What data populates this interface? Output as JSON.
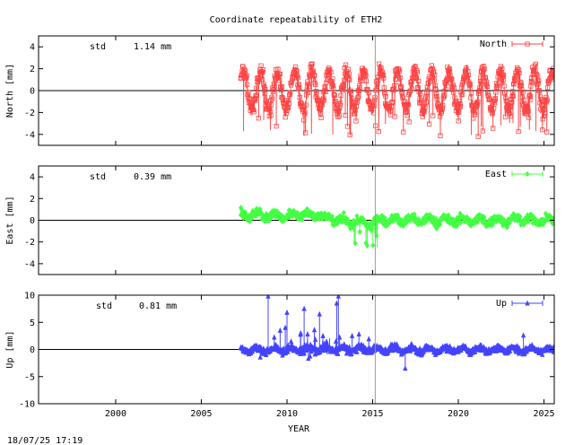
{
  "title": "Coordinate repeatability of ETH2",
  "xlabel": "YEAR",
  "footer": "18/07/25 17:19",
  "chart_data": {
    "type": "scatter",
    "title": "Coordinate repeatability of ETH2",
    "xlabel": "YEAR",
    "xlim": [
      1995.5,
      2025.6
    ],
    "xticks": [
      "2000",
      "2005",
      "2010",
      "2015",
      "2020",
      "2025"
    ],
    "vline_year": 2015.15,
    "panels": [
      {
        "ylabel": "North [mm]",
        "legend": "North",
        "std_label": "std",
        "std_value": "1.14 mm",
        "color": "#ff4444",
        "marker": "square",
        "ylim": [
          -5,
          5
        ],
        "yticks": [
          "4",
          "2",
          "0",
          "-2",
          "-4"
        ],
        "data_start": 2007.3,
        "data_end": 2025.6,
        "annual_amplitude_mm": 1.8,
        "scatter_mm": 0.6,
        "outlier_range_mm": [
          -4.2,
          2.8
        ]
      },
      {
        "ylabel": "East [mm]",
        "legend": "East",
        "std_label": "std",
        "std_value": "0.39 mm",
        "color": "#44ff44",
        "marker": "diamond",
        "ylim": [
          -5,
          5
        ],
        "yticks": [
          "4",
          "2",
          "0",
          "-2",
          "-4"
        ],
        "data_start": 2007.3,
        "data_end": 2025.6,
        "annual_amplitude_mm": 0.5,
        "scatter_mm": 0.35,
        "outlier_range_mm": [
          -2.5,
          2.6
        ]
      },
      {
        "ylabel": "Up [mm]",
        "legend": "Up",
        "std_label": "std",
        "std_value": "0.81 mm",
        "color": "#4444ff",
        "marker": "triangle",
        "ylim": [
          -10,
          10
        ],
        "yticks": [
          "10",
          "5",
          "0",
          "-5",
          "-10"
        ],
        "data_start": 2007.3,
        "data_end": 2025.6,
        "annual_amplitude_mm": 0.4,
        "scatter_mm": 0.5,
        "spikes": [
          {
            "x": 2008.9,
            "y": 9.8
          },
          {
            "x": 2009.6,
            "y": 3.5
          },
          {
            "x": 2009.9,
            "y": 4.0
          },
          {
            "x": 2010.0,
            "y": 6.8
          },
          {
            "x": 2010.8,
            "y": 3.0
          },
          {
            "x": 2011.0,
            "y": 7.5
          },
          {
            "x": 2011.6,
            "y": 3.6
          },
          {
            "x": 2011.9,
            "y": 6.5
          },
          {
            "x": 2012.1,
            "y": 2.5
          },
          {
            "x": 2012.9,
            "y": 8.5
          },
          {
            "x": 2013.0,
            "y": 9.8
          },
          {
            "x": 2013.8,
            "y": 2.5
          },
          {
            "x": 2014.2,
            "y": 2.8
          },
          {
            "x": 2016.9,
            "y": -3.5
          },
          {
            "x": 2023.8,
            "y": 2.6
          }
        ]
      }
    ]
  }
}
